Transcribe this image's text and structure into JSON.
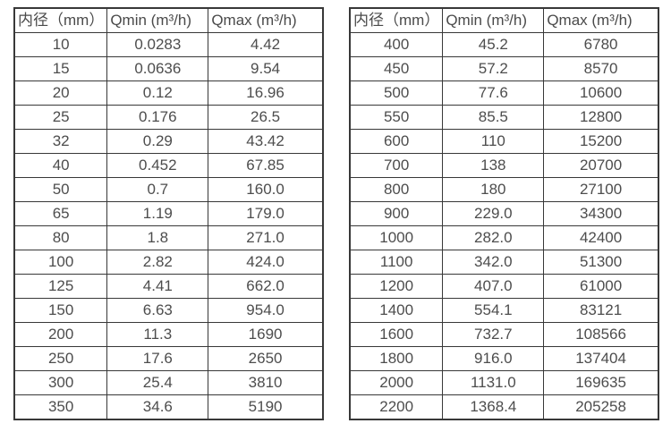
{
  "page": {
    "background_color": "#ffffff",
    "table_border_color": "#383838",
    "text_color": "#4d4d4d"
  },
  "chart_data": [
    {
      "type": "table",
      "columns": [
        "内径（mm）",
        "Qmin (m³/h)",
        "Qmax (m³/h)"
      ],
      "rows": [
        [
          "10",
          "0.0283",
          "4.42"
        ],
        [
          "15",
          "0.0636",
          "9.54"
        ],
        [
          "20",
          "0.12",
          "16.96"
        ],
        [
          "25",
          "0.176",
          "26.5"
        ],
        [
          "32",
          "0.29",
          "43.42"
        ],
        [
          "40",
          "0.452",
          "67.85"
        ],
        [
          "50",
          "0.7",
          "160.0"
        ],
        [
          "65",
          "1.19",
          "179.0"
        ],
        [
          "80",
          "1.8",
          "271.0"
        ],
        [
          "100",
          "2.82",
          "424.0"
        ],
        [
          "125",
          "4.41",
          "662.0"
        ],
        [
          "150",
          "6.63",
          "954.0"
        ],
        [
          "200",
          "11.3",
          "1690"
        ],
        [
          "250",
          "17.6",
          "2650"
        ],
        [
          "300",
          "25.4",
          "3810"
        ],
        [
          "350",
          "34.6",
          "5190"
        ]
      ]
    },
    {
      "type": "table",
      "columns": [
        "内径（mm）",
        "Qmin (m³/h)",
        "Qmax (m³/h)"
      ],
      "rows": [
        [
          "400",
          "45.2",
          "6780"
        ],
        [
          "450",
          "57.2",
          "8570"
        ],
        [
          "500",
          "77.6",
          "10600"
        ],
        [
          "550",
          "85.5",
          "12800"
        ],
        [
          "600",
          "110",
          "15200"
        ],
        [
          "700",
          "138",
          "20700"
        ],
        [
          "800",
          "180",
          "27100"
        ],
        [
          "900",
          "229.0",
          "34300"
        ],
        [
          "1000",
          "282.0",
          "42400"
        ],
        [
          "1100",
          "342.0",
          "51300"
        ],
        [
          "1200",
          "407.0",
          "61000"
        ],
        [
          "1400",
          "554.1",
          "83121"
        ],
        [
          "1600",
          "732.7",
          "108566"
        ],
        [
          "1800",
          "916.0",
          "137404"
        ],
        [
          "2000",
          "1131.0",
          "169635"
        ],
        [
          "2200",
          "1368.4",
          "205258"
        ]
      ]
    }
  ]
}
